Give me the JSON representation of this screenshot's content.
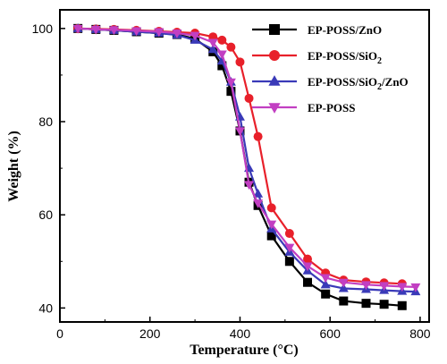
{
  "chart_data": {
    "type": "line",
    "title": "",
    "xlabel": "Temperature (°C)",
    "ylabel": "Weight (%)",
    "xlim": [
      0,
      820
    ],
    "ylim": [
      37,
      104
    ],
    "xticks": [
      0,
      200,
      400,
      600,
      800
    ],
    "yticks": [
      40,
      60,
      80,
      100
    ],
    "grid": false,
    "legend_position": "top-right",
    "series": [
      {
        "name": "EP-POSS/ZnO",
        "color": "#000000",
        "marker": "square",
        "x": [
          40,
          80,
          120,
          170,
          220,
          260,
          300,
          340,
          360,
          380,
          400,
          420,
          440,
          470,
          510,
          550,
          590,
          630,
          680,
          720,
          760
        ],
        "y": [
          100,
          99.8,
          99.6,
          99.3,
          99.0,
          98.7,
          97.8,
          95.0,
          92.0,
          86.5,
          78.0,
          67.0,
          62.0,
          55.5,
          50.0,
          45.5,
          43.0,
          41.5,
          41.0,
          40.8,
          40.5
        ]
      },
      {
        "name": "EP-POSS/SiO2",
        "color": "#e8202a",
        "marker": "circle",
        "x": [
          40,
          80,
          120,
          170,
          220,
          260,
          300,
          340,
          360,
          380,
          400,
          420,
          440,
          470,
          510,
          550,
          590,
          630,
          680,
          720,
          760
        ],
        "y": [
          100,
          99.9,
          99.8,
          99.6,
          99.4,
          99.2,
          99.0,
          98.2,
          97.5,
          96.0,
          92.8,
          85.0,
          76.8,
          61.5,
          56.0,
          50.5,
          47.5,
          46.0,
          45.6,
          45.4,
          45.2
        ]
      },
      {
        "name": "EP-POSS/SiO2/ZnO",
        "color": "#3a3ab8",
        "marker": "triangle-up",
        "x": [
          40,
          80,
          120,
          170,
          220,
          260,
          300,
          340,
          360,
          380,
          400,
          420,
          440,
          470,
          510,
          550,
          590,
          630,
          680,
          720,
          760,
          790
        ],
        "y": [
          100,
          99.8,
          99.6,
          99.3,
          99.0,
          98.6,
          97.5,
          95.5,
          93.0,
          88.5,
          81.0,
          70.0,
          64.5,
          57.0,
          52.0,
          48.0,
          45.0,
          44.2,
          44.0,
          43.8,
          43.6,
          43.5
        ]
      },
      {
        "name": "EP-POSS",
        "color": "#c23fc2",
        "marker": "triangle-down",
        "x": [
          40,
          80,
          120,
          170,
          220,
          260,
          300,
          340,
          360,
          380,
          400,
          420,
          440,
          470,
          510,
          550,
          590,
          630,
          680,
          720,
          760,
          790
        ],
        "y": [
          100,
          99.8,
          99.7,
          99.5,
          99.3,
          99.0,
          98.5,
          97.0,
          94.5,
          88.5,
          78.0,
          66.5,
          62.5,
          58.0,
          53.0,
          49.0,
          46.5,
          45.5,
          45.0,
          44.8,
          44.6,
          44.5
        ]
      }
    ],
    "legend": [
      {
        "text": "EP-POSS/ZnO"
      },
      {
        "text": "EP-POSS/SiO",
        "sub": "2"
      },
      {
        "text": "EP-POSS/SiO",
        "sub": "2",
        "text2": "/ZnO"
      },
      {
        "text": "EP-POSS"
      }
    ]
  }
}
